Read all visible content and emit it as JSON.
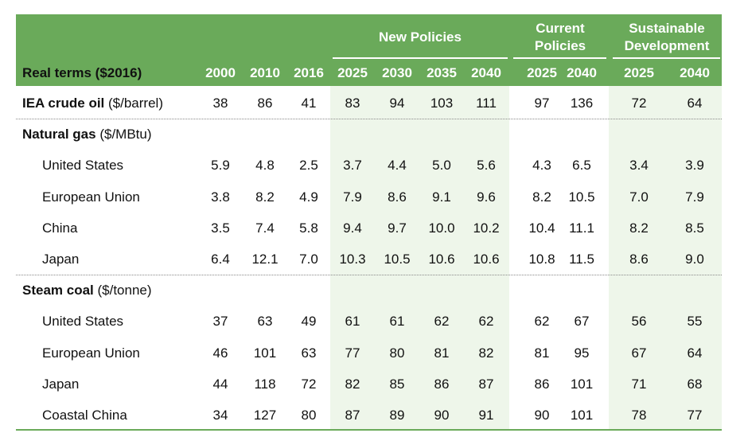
{
  "table": {
    "groups": [
      "New Policies",
      "Current Policies",
      "Sustainable Development"
    ],
    "header_label": "Real terms ($2016)",
    "columns": [
      "2000",
      "2010",
      "2016",
      "2025",
      "2030",
      "2035",
      "2040",
      "2025",
      "2040",
      "2025",
      "2040"
    ],
    "rows": [
      {
        "label": "IEA crude oil",
        "unit": "($/barrel)",
        "values": [
          "38",
          "86",
          "41",
          "83",
          "94",
          "103",
          "111",
          "97",
          "136",
          "72",
          "64"
        ]
      },
      {
        "label": "Natural gas",
        "unit": "($/MBtu)"
      },
      {
        "label": "United States",
        "values": [
          "5.9",
          "4.8",
          "2.5",
          "3.7",
          "4.4",
          "5.0",
          "5.6",
          "4.3",
          "6.5",
          "3.4",
          "3.9"
        ]
      },
      {
        "label": "European Union",
        "values": [
          "3.8",
          "8.2",
          "4.9",
          "7.9",
          "8.6",
          "9.1",
          "9.6",
          "8.2",
          "10.5",
          "7.0",
          "7.9"
        ]
      },
      {
        "label": "China",
        "values": [
          "3.5",
          "7.4",
          "5.8",
          "9.4",
          "9.7",
          "10.0",
          "10.2",
          "10.4",
          "11.1",
          "8.2",
          "8.5"
        ]
      },
      {
        "label": "Japan",
        "values": [
          "6.4",
          "12.1",
          "7.0",
          "10.3",
          "10.5",
          "10.6",
          "10.6",
          "10.8",
          "11.5",
          "8.6",
          "9.0"
        ]
      },
      {
        "label": "Steam coal",
        "unit": "($/tonne)"
      },
      {
        "label": "United States",
        "values": [
          "37",
          "63",
          "49",
          "61",
          "61",
          "62",
          "62",
          "62",
          "67",
          "56",
          "55"
        ]
      },
      {
        "label": "European Union",
        "values": [
          "46",
          "101",
          "63",
          "77",
          "80",
          "81",
          "82",
          "81",
          "95",
          "67",
          "64"
        ]
      },
      {
        "label": "Japan",
        "values": [
          "44",
          "118",
          "72",
          "82",
          "85",
          "86",
          "87",
          "86",
          "101",
          "71",
          "68"
        ]
      },
      {
        "label": "Coastal China",
        "values": [
          "34",
          "127",
          "80",
          "87",
          "89",
          "90",
          "91",
          "90",
          "101",
          "78",
          "77"
        ]
      }
    ]
  }
}
